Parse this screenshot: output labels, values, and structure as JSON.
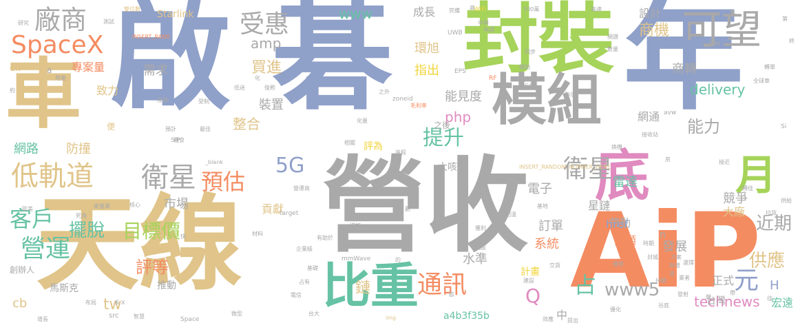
{
  "palette": {
    "blue": "#8fa0c9",
    "green": "#a6d35a",
    "tan": "#e0c489",
    "gray": "#a9a9a9",
    "orange": "#f48c62",
    "pink": "#e08ac0",
    "teal": "#66c2a4",
    "yellow": "#f0d43a"
  },
  "words": [
    {
      "text": "啟",
      "size": 175,
      "color": "blue"
    },
    {
      "text": "碁",
      "size": 175,
      "color": "blue"
    },
    {
      "text": "年",
      "size": 175,
      "color": "blue"
    },
    {
      "text": "營收",
      "size": 150,
      "color": "gray"
    },
    {
      "text": "天線",
      "size": 150,
      "color": "tan"
    },
    {
      "text": "AiP",
      "size": 150,
      "color": "orange"
    },
    {
      "text": "封裝",
      "size": 110,
      "color": "green"
    },
    {
      "text": "車",
      "size": 110,
      "color": "tan"
    },
    {
      "text": "模組",
      "size": 80,
      "color": "gray"
    },
    {
      "text": "底",
      "size": 80,
      "color": "pink"
    },
    {
      "text": "比重",
      "size": 70,
      "color": "teal"
    },
    {
      "text": "月",
      "size": 60,
      "color": "green"
    },
    {
      "text": "可望",
      "size": 58,
      "color": "gray"
    },
    {
      "text": "SpaceX",
      "size": 36,
      "color": "orange"
    },
    {
      "text": "廠商",
      "size": 38,
      "color": "gray"
    },
    {
      "text": "受惠",
      "size": 36,
      "color": "gray"
    },
    {
      "text": "低軌道",
      "size": 40,
      "color": "tan"
    },
    {
      "text": "衛星",
      "size": 40,
      "color": "gray"
    },
    {
      "text": "預估",
      "size": 32,
      "color": "orange"
    },
    {
      "text": "衛星",
      "size": 36,
      "color": "gray"
    },
    {
      "text": "客戶",
      "size": 32,
      "color": "teal"
    },
    {
      "text": "營運",
      "size": 36,
      "color": "teal"
    },
    {
      "text": "5G",
      "size": 30,
      "color": "blue"
    },
    {
      "text": "提升",
      "size": 30,
      "color": "teal"
    },
    {
      "text": "通訊",
      "size": 36,
      "color": "orange"
    },
    {
      "text": "目標價",
      "size": 28,
      "color": "green"
    },
    {
      "text": "擺脫",
      "size": 26,
      "color": "teal"
    },
    {
      "text": "評等",
      "size": 24,
      "color": "orange"
    },
    {
      "text": "近期",
      "size": 26,
      "color": "gray"
    },
    {
      "text": "供應",
      "size": 26,
      "color": "tan"
    },
    {
      "text": "元",
      "size": 36,
      "color": "blue"
    },
    {
      "text": "占",
      "size": 32,
      "color": "teal"
    },
    {
      "text": "Q",
      "size": 28,
      "color": "pink"
    },
    {
      "text": "www5",
      "size": 26,
      "color": "gray"
    },
    {
      "text": "technews",
      "size": 20,
      "color": "pink"
    },
    {
      "text": "能力",
      "size": 24,
      "color": "gray"
    },
    {
      "text": "delivery",
      "size": 20,
      "color": "teal"
    },
    {
      "text": "商機",
      "size": 22,
      "color": "tan"
    },
    {
      "text": "設計",
      "size": 16,
      "color": "gray"
    },
    {
      "text": "買進",
      "size": 22,
      "color": "tan"
    },
    {
      "text": "amp",
      "size": 20,
      "color": "gray"
    },
    {
      "text": "www",
      "size": 20,
      "color": "teal"
    },
    {
      "text": "成長",
      "size": 16,
      "color": "gray"
    },
    {
      "text": "環旭",
      "size": 18,
      "color": "tan"
    },
    {
      "text": "指出",
      "size": 18,
      "color": "yellow"
    },
    {
      "text": "需求",
      "size": 18,
      "color": "gray"
    },
    {
      "text": "專案量",
      "size": 16,
      "color": "orange"
    },
    {
      "text": "致力",
      "size": 16,
      "color": "tan"
    },
    {
      "text": "網路",
      "size": 18,
      "color": "teal"
    },
    {
      "text": "防撞",
      "size": 18,
      "color": "tan"
    },
    {
      "text": "整合",
      "size": 20,
      "color": "tan"
    },
    {
      "text": "裝置",
      "size": 18,
      "color": "gray"
    },
    {
      "text": "php",
      "size": 20,
      "color": "pink"
    },
    {
      "text": "能見度",
      "size": 18,
      "color": "gray"
    },
    {
      "text": "商轉",
      "size": 18,
      "color": "gray"
    },
    {
      "text": "網通",
      "size": 16,
      "color": "gray"
    },
    {
      "text": "評為",
      "size": 14,
      "color": "yellow"
    },
    {
      "text": "市場",
      "size": 18,
      "color": "gray"
    },
    {
      "text": "電子",
      "size": 18,
      "color": "gray"
    },
    {
      "text": "雷達",
      "size": 18,
      "color": "teal"
    },
    {
      "text": "競爭",
      "size": 18,
      "color": "gray"
    },
    {
      "text": "大廠",
      "size": 16,
      "color": "tan"
    },
    {
      "text": "星鏈",
      "size": 16,
      "color": "gray"
    },
    {
      "text": "貢獻",
      "size": 16,
      "color": "tan"
    },
    {
      "text": "訂單",
      "size": 18,
      "color": "gray"
    },
    {
      "text": "帶動",
      "size": 16,
      "color": "gray"
    },
    {
      "text": "投顧",
      "size": 16,
      "color": "orange"
    },
    {
      "text": "href",
      "size": 16,
      "color": "blue"
    },
    {
      "text": "系統",
      "size": 18,
      "color": "orange"
    },
    {
      "text": "水準",
      "size": 18,
      "color": "gray"
    },
    {
      "text": "發展",
      "size": 18,
      "color": "gray"
    },
    {
      "text": "正式",
      "size": 16,
      "color": "gray"
    },
    {
      "text": "台灣",
      "size": 14,
      "color": "gray"
    },
    {
      "text": "宏遠",
      "size": 16,
      "color": "teal"
    },
    {
      "text": "H",
      "size": 18,
      "color": "blue"
    },
    {
      "text": "鏈",
      "size": 22,
      "color": "tan"
    },
    {
      "text": "計畫",
      "size": 14,
      "color": "yellow"
    },
    {
      "text": "中",
      "size": 16,
      "color": "gray"
    },
    {
      "text": "a4b3f35b",
      "size": 14,
      "color": "teal"
    },
    {
      "text": "tw",
      "size": 22,
      "color": "tan"
    },
    {
      "text": "推動",
      "size": 14,
      "color": "gray"
    },
    {
      "text": "Starlink",
      "size": 14,
      "color": "tan"
    },
    {
      "text": "馬斯克",
      "size": 14,
      "color": "gray"
    },
    {
      "text": "創辦人",
      "size": 12,
      "color": "gray"
    },
    {
      "text": "cb",
      "size": 18,
      "color": "tan"
    },
    {
      "text": "ck",
      "size": 14,
      "color": "tan"
    },
    {
      "text": "大咳",
      "size": 14,
      "color": "gray"
    },
    {
      "text": "之後",
      "size": 12,
      "color": "gray"
    },
    {
      "text": "便",
      "size": 12,
      "color": "tan"
    },
    {
      "text": "a",
      "size": 12,
      "color": "gray"
    },
    {
      "text": "n",
      "size": 14,
      "color": "gray"
    },
    {
      "text": "mmWave",
      "size": 9,
      "color": "gray"
    },
    {
      "text": "INSERT_RAND",
      "size": 8,
      "color": "orange"
    },
    {
      "text": "INSERT_RANDOM_NUMBER_HERE",
      "size": 8,
      "color": "tan"
    },
    {
      "text": "zoneid",
      "size": 9,
      "color": "gray"
    },
    {
      "text": "_blank",
      "size": 8,
      "color": "gray"
    },
    {
      "text": "target",
      "size": 9,
      "color": "gray"
    },
    {
      "text": "Space",
      "size": 9,
      "color": "gray"
    },
    {
      "text": "img",
      "size": 8,
      "color": "tan"
    },
    {
      "text": "src",
      "size": 10,
      "color": "gray"
    },
    {
      "text": "UWB",
      "size": 9,
      "color": "gray"
    },
    {
      "text": "EPS",
      "size": 9,
      "color": "gray"
    },
    {
      "text": "WiFi",
      "size": 9,
      "color": "yellow"
    },
    {
      "text": "500萬",
      "size": 8,
      "color": "gray"
    },
    {
      "text": "RF",
      "size": 9,
      "color": "orange"
    },
    {
      "text": "SiP",
      "size": 9,
      "color": "gray"
    },
    {
      "text": "avw",
      "size": 9,
      "color": "gray"
    },
    {
      "text": "Si",
      "size": 9,
      "color": "gray"
    },
    {
      "text": "雙位數",
      "size": 8,
      "color": "tan"
    },
    {
      "text": "研究",
      "size": 8,
      "color": "gray"
    },
    {
      "text": "測試",
      "size": 8,
      "color": "gray"
    },
    {
      "text": "高速",
      "size": 8,
      "color": "gray"
    },
    {
      "text": "完備",
      "size": 8,
      "color": "gray"
    },
    {
      "text": "高",
      "size": 8,
      "color": "gray"
    },
    {
      "text": "中興",
      "size": 8,
      "color": "gray"
    },
    {
      "text": "申請",
      "size": 8,
      "color": "gray"
    },
    {
      "text": "頻譜",
      "size": 8,
      "color": "gray"
    },
    {
      "text": "數量",
      "size": 8,
      "color": "gray"
    },
    {
      "text": "資料",
      "size": 8,
      "color": "gray"
    },
    {
      "text": "轉單",
      "size": 8,
      "color": "gray"
    },
    {
      "text": "全球車",
      "size": 8,
      "color": "gray"
    },
    {
      "text": "用量",
      "size": 8,
      "color": "gray"
    },
    {
      "text": "陸續",
      "size": 8,
      "color": "gray"
    },
    {
      "text": "受制",
      "size": 8,
      "color": "gray"
    },
    {
      "text": "預計",
      "size": 8,
      "color": "gray"
    },
    {
      "text": "機會",
      "size": 8,
      "color": "gray"
    },
    {
      "text": "相關",
      "size": 8,
      "color": "gray"
    },
    {
      "text": "最佳",
      "size": 8,
      "color": "gray"
    },
    {
      "text": "同步",
      "size": 8,
      "color": "gray"
    },
    {
      "text": "輔助",
      "size": 8,
      "color": "gray"
    },
    {
      "text": "近年",
      "size": 8,
      "color": "gray"
    },
    {
      "text": "聯示",
      "size": 8,
      "color": "gray"
    },
    {
      "text": "低迷",
      "size": 8,
      "color": "gray"
    },
    {
      "text": "復甦",
      "size": 8,
      "color": "gray"
    },
    {
      "text": "之外",
      "size": 8,
      "color": "gray"
    },
    {
      "text": "毛利率",
      "size": 8,
      "color": "orange"
    },
    {
      "text": "化量",
      "size": 8,
      "color": "gray"
    },
    {
      "text": "進程",
      "size": 8,
      "color": "gray"
    },
    {
      "text": "換機",
      "size": 8,
      "color": "gray"
    },
    {
      "text": "接收站",
      "size": 8,
      "color": "gray"
    },
    {
      "text": "營運商",
      "size": 8,
      "color": "gray"
    },
    {
      "text": "留意",
      "size": 8,
      "color": "gray"
    },
    {
      "text": "基地",
      "size": 8,
      "color": "gray"
    },
    {
      "text": "回溫",
      "size": 8,
      "color": "gray"
    },
    {
      "text": "增加",
      "size": 8,
      "color": "gray"
    },
    {
      "text": "材料",
      "size": 8,
      "color": "gray"
    },
    {
      "text": "有助於",
      "size": 8,
      "color": "gray"
    },
    {
      "text": "企業級",
      "size": 8,
      "color": "gray"
    },
    {
      "text": "獲利",
      "size": 8,
      "color": "gray"
    },
    {
      "text": "地面",
      "size": 8,
      "color": "gray"
    },
    {
      "text": "交貨",
      "size": 8,
      "color": "gray"
    },
    {
      "text": "建設",
      "size": 8,
      "color": "gray"
    },
    {
      "text": "優勢",
      "size": 8,
      "color": "gray"
    },
    {
      "text": "封城",
      "size": 8,
      "color": "gray"
    },
    {
      "text": "選擇",
      "size": 8,
      "color": "gray"
    },
    {
      "text": "發射",
      "size": 8,
      "color": "gray"
    },
    {
      "text": "谷底",
      "size": 8,
      "color": "gray"
    },
    {
      "text": "優化",
      "size": 8,
      "color": "gray"
    },
    {
      "text": "效應",
      "size": 8,
      "color": "gray"
    },
    {
      "text": "提出",
      "size": 8,
      "color": "gray"
    },
    {
      "text": "台大",
      "size": 8,
      "color": "gray"
    },
    {
      "text": "電信",
      "size": 8,
      "color": "gray"
    },
    {
      "text": "微型",
      "size": 8,
      "color": "gray"
    },
    {
      "text": "智慧",
      "size": 8,
      "color": "gray"
    },
    {
      "text": "增長",
      "size": 8,
      "color": "gray"
    },
    {
      "text": "布局",
      "size": 8,
      "color": "gray"
    },
    {
      "text": "核心",
      "size": 8,
      "color": "gray"
    },
    {
      "text": "寄量單",
      "size": 8,
      "color": "gray"
    },
    {
      "text": "死角",
      "size": 8,
      "color": "gray"
    },
    {
      "text": "歐美",
      "size": 8,
      "color": "gray"
    },
    {
      "text": "基礎",
      "size": 8,
      "color": "gray"
    },
    {
      "text": "供給",
      "size": 8,
      "color": "gray"
    },
    {
      "text": "拉貨",
      "size": 8,
      "color": "gray"
    },
    {
      "text": "接近",
      "size": 8,
      "color": "gray"
    },
    {
      "text": "轉佳",
      "size": 8,
      "color": "gray"
    },
    {
      "text": "時期",
      "size": 8,
      "color": "gray"
    },
    {
      "text": "方案",
      "size": 8,
      "color": "gray"
    },
    {
      "text": "新增",
      "size": 8,
      "color": "gray"
    },
    {
      "text": "業者",
      "size": 8,
      "color": "gray"
    },
    {
      "text": "持續",
      "size": 8,
      "color": "gray"
    },
    {
      "text": "占有",
      "size": 8,
      "color": "gray"
    },
    {
      "text": "化",
      "size": 8,
      "color": "gray"
    },
    {
      "text": "約",
      "size": 8,
      "color": "gray"
    },
    {
      "text": "的",
      "size": 8,
      "color": "gray"
    },
    {
      "text": "道",
      "size": 8,
      "color": "gray"
    },
    {
      "text": "快",
      "size": 8,
      "color": "gray"
    },
    {
      "text": "佳",
      "size": 8,
      "color": "gray"
    },
    {
      "text": "歐",
      "size": 8,
      "color": "gray"
    },
    {
      "text": "劃",
      "size": 8,
      "color": "gray"
    },
    {
      "text": "潮",
      "size": 8,
      "color": "gray"
    },
    {
      "text": "第",
      "size": 8,
      "color": "gray"
    },
    {
      "text": "終",
      "size": 8,
      "color": "gray"
    },
    {
      "text": "帶",
      "size": 8,
      "color": "gray"
    },
    {
      "text": "房",
      "size": 8,
      "color": "gray"
    },
    {
      "text": "系",
      "size": 8,
      "color": "gray"
    },
    {
      "text": "X",
      "size": 8,
      "color": "gray"
    }
  ]
}
